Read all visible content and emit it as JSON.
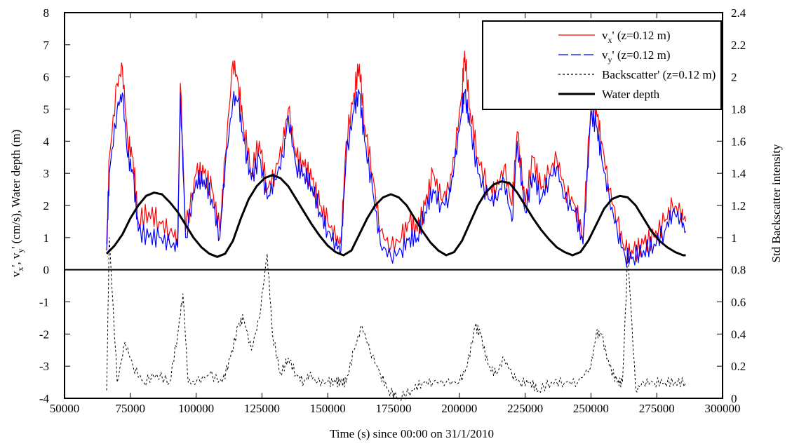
{
  "chart_data": {
    "type": "line",
    "xlabel": "Time (s) since 00:00 on 31/1/2010",
    "ylabel_left": "vₓ', vᵧ', Water depth (m)",
    "ylabel_left_parts": [
      "v",
      "x",
      "', v",
      "y",
      "' (cm/s), Water depth (m)"
    ],
    "ylabel_right": "Std Backscatter intensity",
    "xlim": [
      50000,
      300000
    ],
    "ylim_left": [
      -4,
      8
    ],
    "ylim_right": [
      0,
      2.4
    ],
    "x_ticks": [
      "50000",
      "75000",
      "100000",
      "125000",
      "150000",
      "175000",
      "200000",
      "225000",
      "250000",
      "275000",
      "300000"
    ],
    "y_left_ticks": [
      "-4",
      "-3",
      "-2",
      "-1",
      "0",
      "1",
      "2",
      "3",
      "4",
      "5",
      "6",
      "7",
      "8"
    ],
    "y_right_ticks": [
      "0",
      "0.2",
      "0.4",
      "0.6",
      "0.8",
      "1",
      "1.2",
      "1.4",
      "1.6",
      "1.8",
      "2",
      "2.2",
      "2.4"
    ],
    "grid": false,
    "legend_position": "top-right",
    "legend": [
      {
        "id": "vx",
        "text_main": "v",
        "text_sub": "x",
        "text_rest": "' (z=0.12 m)",
        "color": "#ff0000",
        "dash": ""
      },
      {
        "id": "vy",
        "text_main": "v",
        "text_sub": "y",
        "text_rest": "' (z=0.12 m)",
        "color": "#0000ff",
        "dash": "14,4"
      },
      {
        "id": "bs",
        "text_main": "Backscatter' (z=0.12 m)",
        "text_sub": "",
        "text_rest": "",
        "color": "#000000",
        "dash": "3,3"
      },
      {
        "id": "wd",
        "text_main": "Water depth",
        "text_sub": "",
        "text_rest": "",
        "color": "#000000",
        "dash": ""
      }
    ],
    "series": [
      {
        "name": "vx' (z=0.12 m)",
        "axis": "left",
        "color": "#ff0000",
        "x": [
          66000,
          67000,
          70000,
          72000,
          74000,
          76000,
          78000,
          82000,
          86000,
          90000,
          93000,
          94000,
          96000,
          100000,
          103000,
          106000,
          109000,
          111000,
          114000,
          116000,
          118000,
          121000,
          124000,
          127000,
          130000,
          133000,
          135000,
          138000,
          141000,
          144000,
          147000,
          150000,
          153000,
          155000,
          157000,
          160000,
          162000,
          164000,
          167000,
          170000,
          174000,
          178000,
          181000,
          184000,
          187000,
          190000,
          193000,
          196000,
          198000,
          201000,
          202000,
          204000,
          207000,
          211000,
          214000,
          217000,
          220000,
          222000,
          225000,
          228000,
          231000,
          234000,
          237000,
          240000,
          244000,
          247000,
          250000,
          252000,
          254000,
          257000,
          260000,
          263000,
          266000,
          270000,
          274000,
          278000,
          281000,
          284000,
          286000
        ],
        "y": [
          0.8,
          3.5,
          5.8,
          6.3,
          4.0,
          3.5,
          1.5,
          1.8,
          1.5,
          1.2,
          1.0,
          5.8,
          1.2,
          3.0,
          3.0,
          2.5,
          1.2,
          3.5,
          6.5,
          5.8,
          4.5,
          3.0,
          4.0,
          2.5,
          3.0,
          4.0,
          5.0,
          3.5,
          3.2,
          2.8,
          2.0,
          1.5,
          1.0,
          0.8,
          4.0,
          5.5,
          6.4,
          4.5,
          3.0,
          1.2,
          0.7,
          1.0,
          1.5,
          1.2,
          2.0,
          3.0,
          2.2,
          2.5,
          3.5,
          5.5,
          6.8,
          5.0,
          3.5,
          2.5,
          2.5,
          3.2,
          2.0,
          4.3,
          2.0,
          3.5,
          2.5,
          3.0,
          3.5,
          2.5,
          2.0,
          1.0,
          5.2,
          5.0,
          4.0,
          2.5,
          1.5,
          0.6,
          0.5,
          0.8,
          1.0,
          1.5,
          2.0,
          1.8,
          1.5
        ]
      },
      {
        "name": "vy' (z=0.12 m)",
        "axis": "left",
        "color": "#0000ff",
        "x": [
          66000,
          67000,
          70000,
          72000,
          74000,
          76000,
          78000,
          82000,
          86000,
          90000,
          93000,
          94000,
          96000,
          100000,
          103000,
          106000,
          109000,
          111000,
          114000,
          116000,
          118000,
          121000,
          124000,
          127000,
          130000,
          133000,
          135000,
          138000,
          141000,
          144000,
          147000,
          150000,
          153000,
          155000,
          157000,
          160000,
          162000,
          164000,
          167000,
          170000,
          174000,
          178000,
          181000,
          184000,
          187000,
          190000,
          193000,
          196000,
          198000,
          201000,
          202000,
          204000,
          207000,
          211000,
          214000,
          217000,
          220000,
          222000,
          225000,
          228000,
          231000,
          234000,
          237000,
          240000,
          244000,
          247000,
          250000,
          252000,
          254000,
          257000,
          260000,
          263000,
          266000,
          270000,
          274000,
          278000,
          281000,
          284000,
          286000
        ],
        "y": [
          0.6,
          3.0,
          5.0,
          5.5,
          3.5,
          3.0,
          1.2,
          1.0,
          1.0,
          0.8,
          0.7,
          5.5,
          1.0,
          2.8,
          2.8,
          2.2,
          1.0,
          3.2,
          5.3,
          5.3,
          4.0,
          2.8,
          3.5,
          2.2,
          2.8,
          3.5,
          4.8,
          3.2,
          3.0,
          2.6,
          1.8,
          1.2,
          0.8,
          0.6,
          3.5,
          5.0,
          5.5,
          4.0,
          2.5,
          0.8,
          0.4,
          0.6,
          1.0,
          1.0,
          1.8,
          2.5,
          2.0,
          2.2,
          3.2,
          5.0,
          5.5,
          4.5,
          3.0,
          2.2,
          2.2,
          2.8,
          1.5,
          4.0,
          1.8,
          3.0,
          2.2,
          2.8,
          3.2,
          2.2,
          1.8,
          0.8,
          4.8,
          4.5,
          3.5,
          2.2,
          1.2,
          0.4,
          0.4,
          0.6,
          0.8,
          1.2,
          1.8,
          1.6,
          1.2
        ]
      },
      {
        "name": "Backscatter' (z=0.12 m)",
        "axis": "right",
        "color": "#000000",
        "x": [
          66000,
          67000,
          70000,
          73000,
          76000,
          80000,
          85000,
          90000,
          93000,
          95000,
          97000,
          100000,
          105000,
          110000,
          113000,
          116000,
          118000,
          121000,
          124000,
          127000,
          129000,
          132000,
          135000,
          138000,
          141000,
          143000,
          146000,
          150000,
          153000,
          155000,
          157000,
          160000,
          163000,
          166000,
          170000,
          173000,
          177000,
          182000,
          186000,
          190000,
          195000,
          200000,
          203000,
          206000,
          208000,
          211000,
          214000,
          217000,
          220000,
          223000,
          227000,
          230000,
          235000,
          240000,
          245000,
          250000,
          252000,
          254000,
          257000,
          260000,
          262000,
          264000,
          267000,
          270000,
          274000,
          278000,
          282000,
          286000
        ],
        "y": [
          0.05,
          1.0,
          0.1,
          0.35,
          0.2,
          0.1,
          0.15,
          0.1,
          0.4,
          0.65,
          0.1,
          0.1,
          0.15,
          0.1,
          0.25,
          0.45,
          0.5,
          0.3,
          0.5,
          0.9,
          0.4,
          0.15,
          0.25,
          0.15,
          0.1,
          0.15,
          0.1,
          0.1,
          0.1,
          0.1,
          0.1,
          0.3,
          0.45,
          0.3,
          0.15,
          0.05,
          0.0,
          0.05,
          0.1,
          0.1,
          0.1,
          0.1,
          0.2,
          0.45,
          0.4,
          0.2,
          0.15,
          0.25,
          0.15,
          0.1,
          0.1,
          0.05,
          0.1,
          0.1,
          0.1,
          0.2,
          0.4,
          0.4,
          0.2,
          0.1,
          0.1,
          0.9,
          0.05,
          0.1,
          0.1,
          0.1,
          0.1,
          0.1
        ]
      },
      {
        "name": "Water depth",
        "axis": "left",
        "color": "#000000",
        "x": [
          66000,
          69000,
          72000,
          75000,
          78000,
          81000,
          84000,
          87000,
          90000,
          93000,
          96000,
          99000,
          102000,
          105000,
          108000,
          111000,
          114000,
          117000,
          120000,
          123000,
          126000,
          129000,
          132000,
          135000,
          138000,
          141000,
          144000,
          147000,
          150000,
          153000,
          156000,
          159000,
          162000,
          165000,
          168000,
          171000,
          174000,
          177000,
          180000,
          183000,
          186000,
          189000,
          192000,
          195000,
          198000,
          201000,
          204000,
          207000,
          210000,
          213000,
          216000,
          219000,
          222000,
          225000,
          228000,
          231000,
          234000,
          237000,
          240000,
          243000,
          246000,
          249000,
          252000,
          255000,
          258000,
          261000,
          264000,
          267000,
          270000,
          273000,
          276000,
          279000,
          282000,
          285000,
          286000
        ],
        "y": [
          0.5,
          0.75,
          1.1,
          1.6,
          2.0,
          2.3,
          2.4,
          2.35,
          2.1,
          1.8,
          1.4,
          1.0,
          0.7,
          0.5,
          0.4,
          0.5,
          0.9,
          1.6,
          2.2,
          2.6,
          2.85,
          2.95,
          2.85,
          2.6,
          2.2,
          1.8,
          1.4,
          1.05,
          0.75,
          0.55,
          0.45,
          0.6,
          1.1,
          1.6,
          2.0,
          2.25,
          2.35,
          2.25,
          2.0,
          1.6,
          1.2,
          0.85,
          0.6,
          0.45,
          0.55,
          0.9,
          1.45,
          2.0,
          2.4,
          2.65,
          2.75,
          2.7,
          2.4,
          2.0,
          1.6,
          1.25,
          0.95,
          0.7,
          0.55,
          0.45,
          0.55,
          0.9,
          1.4,
          1.9,
          2.2,
          2.3,
          2.25,
          2.0,
          1.6,
          1.2,
          0.9,
          0.7,
          0.55,
          0.45,
          0.45
        ]
      }
    ]
  }
}
